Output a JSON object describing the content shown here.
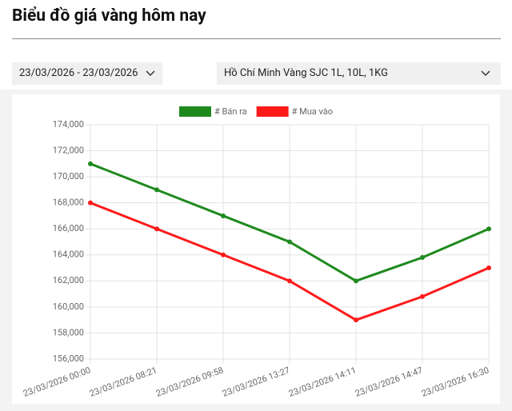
{
  "header": {
    "title": "Biểu đồ giá vàng hôm nay"
  },
  "filters": {
    "date_range": "23/03/2026 - 23/03/2026",
    "location": "Hồ Chí Minh Vàng SJC 1L, 10L, 1KG"
  },
  "chart_data": {
    "type": "line",
    "categories": [
      "23/03/2026 00:00",
      "23/03/2026 08:21",
      "23/03/2026 09:58",
      "23/03/2026 13:27",
      "23/03/2026 14:11",
      "23/03/2026 14:47",
      "23/03/2026 16:30"
    ],
    "series": [
      {
        "name": "# Bán ra",
        "color": "#1e8a1e",
        "values": [
          171000,
          169000,
          167000,
          165000,
          162000,
          163800,
          166000
        ]
      },
      {
        "name": "# Mua vào",
        "color": "#ff1a1a",
        "values": [
          168000,
          166000,
          164000,
          162000,
          159000,
          160800,
          163000
        ]
      }
    ],
    "ylim": [
      156000,
      174000
    ],
    "yticks": [
      {
        "value": 156000,
        "label": "156,000"
      },
      {
        "value": 158000,
        "label": "158,000"
      },
      {
        "value": 160000,
        "label": "160,000"
      },
      {
        "value": 162000,
        "label": "162,000"
      },
      {
        "value": 164000,
        "label": "164,000"
      },
      {
        "value": 166000,
        "label": "166,000"
      },
      {
        "value": 168000,
        "label": "168,000"
      },
      {
        "value": 170000,
        "label": "170,000"
      },
      {
        "value": 172000,
        "label": "172,000"
      },
      {
        "value": 174000,
        "label": "174,000"
      }
    ],
    "grid": true,
    "legend": "top"
  }
}
